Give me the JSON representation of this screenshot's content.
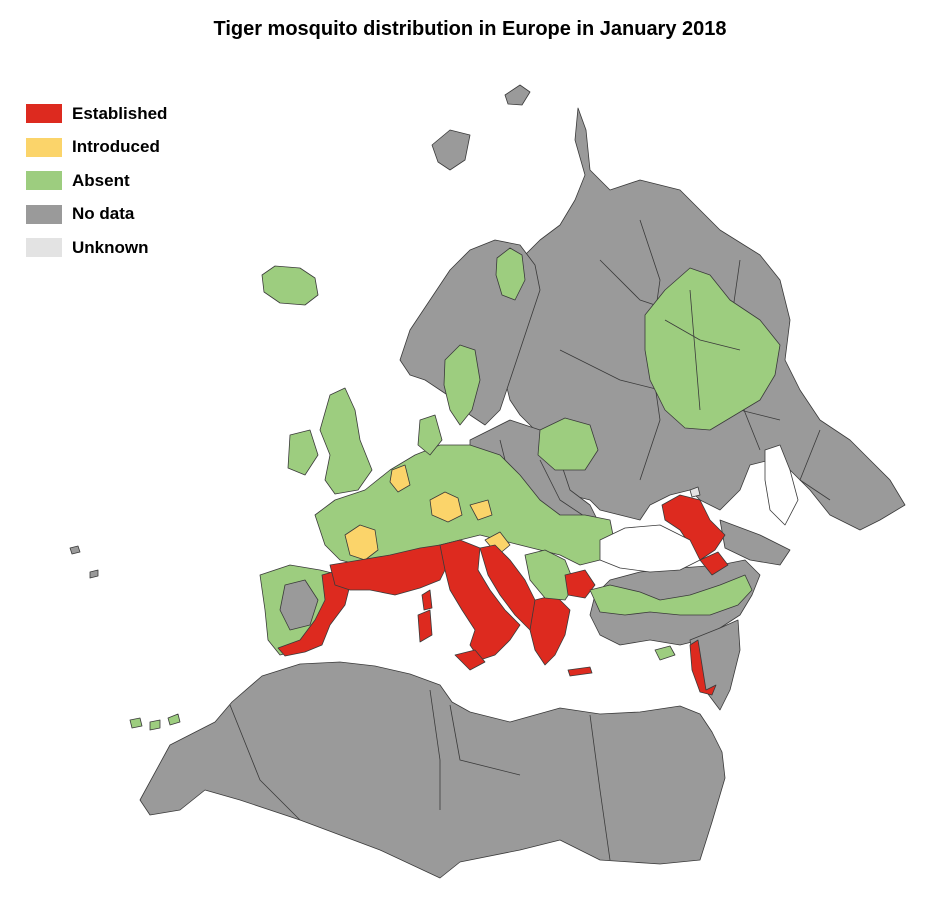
{
  "title": "Tiger mosquito distribution in Europe in January 2018",
  "legend": [
    {
      "label": "Established",
      "color": "#dd2a1f"
    },
    {
      "label": "Introduced",
      "color": "#fbd46a"
    },
    {
      "label": "Absent",
      "color": "#9dcd7f"
    },
    {
      "label": "No data",
      "color": "#9a9a9a"
    },
    {
      "label": "Unknown",
      "color": "#e3e3e3"
    }
  ],
  "colors": {
    "established": "#dd2a1f",
    "introduced": "#fbd46a",
    "absent": "#9dcd7f",
    "no_data": "#9a9a9a",
    "unknown": "#e3e3e3",
    "border": "#3a3a3a"
  }
}
